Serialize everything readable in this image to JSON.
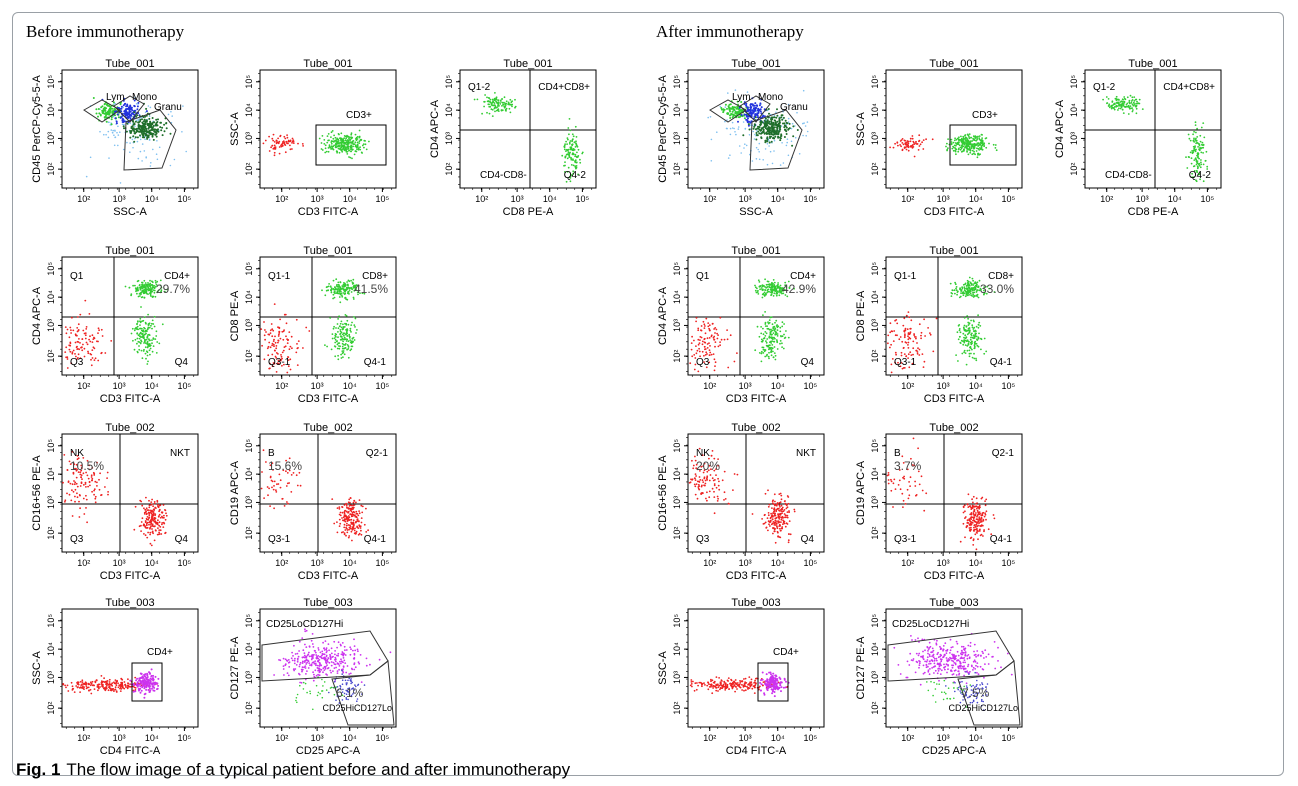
{
  "headings": {
    "before": "Before immunotherapy",
    "after": "After immunotherapy"
  },
  "caption": {
    "label": "Fig. 1",
    "text": "The flow image of a typical patient before and after immunotherapy"
  },
  "tick_labels": [
    "10²",
    "10³",
    "10⁴",
    "10⁵"
  ],
  "colors": {
    "lymphocyte": "#33cc33",
    "monocyte": "#2233dd",
    "granulocyte": "#1f6e2a",
    "debris": "#7fc0f0",
    "non_t": "#ee2222",
    "treg_gate": "#cc33ee",
    "treg_low": "#4444cc"
  },
  "plots": {
    "before": {
      "gating": {
        "title": "Tube_001",
        "xlabel": "SSC-A",
        "ylabel": "CD45 PerCP-Cy5-5-A",
        "gates": [
          "Lym",
          "Mono",
          "Granu"
        ]
      },
      "cd3": {
        "title": "Tube_001",
        "xlabel": "CD3 FITC-A",
        "ylabel": "SSC-A",
        "gates": [
          "CD3+"
        ]
      },
      "cd4cd8": {
        "title": "Tube_001",
        "xlabel": "CD8 PE-A",
        "ylabel": "CD4 APC-A",
        "quadrants": [
          "Q1-2",
          "CD4+CD8+",
          "CD4-CD8-",
          "Q4-2"
        ]
      },
      "cd4": {
        "title": "Tube_001",
        "xlabel": "CD3 FITC-A",
        "ylabel": "CD4 APC-A",
        "quadrants": [
          "Q1",
          "CD4+",
          "Q3",
          "Q4"
        ],
        "percent": "29.7%"
      },
      "cd8": {
        "title": "Tube_001",
        "xlabel": "CD3 FITC-A",
        "ylabel": "CD8 PE-A",
        "quadrants": [
          "Q1-1",
          "CD8+",
          "Q3-1",
          "Q4-1"
        ],
        "percent": "41.5%"
      },
      "nk": {
        "title": "Tube_002",
        "xlabel": "CD3 FITC-A",
        "ylabel": "CD16+56 PE-A",
        "quadrants": [
          "NK",
          "NKT",
          "Q3",
          "Q4"
        ],
        "percent": "10.5%"
      },
      "b": {
        "title": "Tube_002",
        "xlabel": "CD3 FITC-A",
        "ylabel": "CD19 APC-A",
        "quadrants": [
          "B",
          "Q2-1",
          "Q3-1",
          "Q4-1"
        ],
        "percent": "15.6%"
      },
      "cd4gate": {
        "title": "Tube_003",
        "xlabel": "CD4 FITC-A",
        "ylabel": "SSC-A",
        "gates": [
          "CD4+"
        ]
      },
      "treg": {
        "title": "Tube_003",
        "xlabel": "CD25 APC-A",
        "ylabel": "CD127 PE-A",
        "gates": [
          "CD25LoCD127Hi",
          "CD25HiCD127Lo"
        ],
        "percent": "6.1%"
      }
    },
    "after": {
      "gating": {
        "title": "Tube_001",
        "xlabel": "SSC-A",
        "ylabel": "CD45 PerCP-Cy5-5-A",
        "gates": [
          "Lym",
          "Mono",
          "Granu"
        ]
      },
      "cd3": {
        "title": "Tube_001",
        "xlabel": "CD3 FITC-A",
        "ylabel": "SSC-A",
        "gates": [
          "CD3+"
        ]
      },
      "cd4cd8": {
        "title": "Tube_001",
        "xlabel": "CD8 PE-A",
        "ylabel": "CD4 APC-A",
        "quadrants": [
          "Q1-2",
          "CD4+CD8+",
          "CD4-CD8-",
          "Q4-2"
        ]
      },
      "cd4": {
        "title": "Tube_001",
        "xlabel": "CD3 FITC-A",
        "ylabel": "CD4 APC-A",
        "quadrants": [
          "Q1",
          "CD4+",
          "Q3",
          "Q4"
        ],
        "percent": "42.9%"
      },
      "cd8": {
        "title": "Tube_001",
        "xlabel": "CD3 FITC-A",
        "ylabel": "CD8 PE-A",
        "quadrants": [
          "Q1-1",
          "CD8+",
          "Q3-1",
          "Q4-1"
        ],
        "percent": "33.0%"
      },
      "nk": {
        "title": "Tube_002",
        "xlabel": "CD3 FITC-A",
        "ylabel": "CD16+56 PE-A",
        "quadrants": [
          "NK",
          "NKT",
          "Q3",
          "Q4"
        ],
        "percent": "20%"
      },
      "b": {
        "title": "Tube_002",
        "xlabel": "CD3 FITC-A",
        "ylabel": "CD19 APC-A",
        "quadrants": [
          "B",
          "Q2-1",
          "Q3-1",
          "Q4-1"
        ],
        "percent": "3.7%"
      },
      "cd4gate": {
        "title": "Tube_003",
        "xlabel": "CD4 FITC-A",
        "ylabel": "SSC-A",
        "gates": [
          "CD4+"
        ]
      },
      "treg": {
        "title": "Tube_003",
        "xlabel": "CD25 APC-A",
        "ylabel": "CD127 PE-A",
        "gates": [
          "CD25LoCD127Hi",
          "CD25HiCD127Lo"
        ],
        "percent": "7.5%"
      }
    }
  }
}
